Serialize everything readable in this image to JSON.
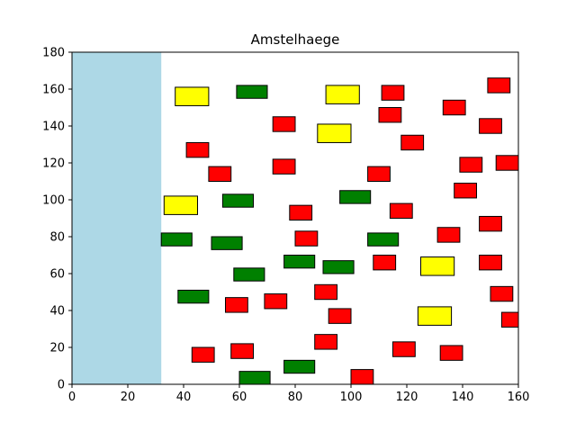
{
  "chart_data": {
    "type": "rectangles",
    "title": "Amstelhaege",
    "xlabel": "",
    "ylabel": "",
    "xlim": [
      0,
      160
    ],
    "ylim": [
      0,
      180
    ],
    "xticks": [
      "0",
      "20",
      "40",
      "60",
      "80",
      "100",
      "120",
      "140",
      "160"
    ],
    "yticks": [
      "0",
      "20",
      "40",
      "60",
      "80",
      "100",
      "120",
      "140",
      "160",
      "180"
    ],
    "grid": false,
    "colors": {
      "water": "#add8e6",
      "red": "#ff0000",
      "green": "#008000",
      "yellow": "#ffff00",
      "edge": "#000000"
    },
    "water": [
      {
        "x": 0,
        "y": 0,
        "w": 32,
        "h": 180
      }
    ],
    "houses": [
      {
        "color": "yellow",
        "x": 37,
        "y": 151,
        "w": 12,
        "h": 10
      },
      {
        "color": "yellow",
        "x": 91,
        "y": 152,
        "w": 12,
        "h": 10
      },
      {
        "color": "yellow",
        "x": 88,
        "y": 131,
        "w": 12,
        "h": 10
      },
      {
        "color": "yellow",
        "x": 33,
        "y": 92,
        "w": 12,
        "h": 10
      },
      {
        "color": "yellow",
        "x": 125,
        "y": 59,
        "w": 12,
        "h": 10
      },
      {
        "color": "yellow",
        "x": 124,
        "y": 32,
        "w": 12,
        "h": 10
      },
      {
        "color": "green",
        "x": 59,
        "y": 155,
        "w": 11,
        "h": 7
      },
      {
        "color": "green",
        "x": 54,
        "y": 96,
        "w": 11,
        "h": 7
      },
      {
        "color": "green",
        "x": 96,
        "y": 98,
        "w": 11,
        "h": 7
      },
      {
        "color": "green",
        "x": 32,
        "y": 75,
        "w": 11,
        "h": 7
      },
      {
        "color": "green",
        "x": 50,
        "y": 73,
        "w": 11,
        "h": 7
      },
      {
        "color": "green",
        "x": 106,
        "y": 75,
        "w": 11,
        "h": 7
      },
      {
        "color": "green",
        "x": 76,
        "y": 63,
        "w": 11,
        "h": 7
      },
      {
        "color": "green",
        "x": 90,
        "y": 60,
        "w": 11,
        "h": 7
      },
      {
        "color": "green",
        "x": 58,
        "y": 56,
        "w": 11,
        "h": 7
      },
      {
        "color": "green",
        "x": 38,
        "y": 44,
        "w": 11,
        "h": 7
      },
      {
        "color": "green",
        "x": 76,
        "y": 6,
        "w": 11,
        "h": 7
      },
      {
        "color": "green",
        "x": 60,
        "y": 0,
        "w": 11,
        "h": 7
      },
      {
        "color": "red",
        "x": 111,
        "y": 154,
        "w": 8,
        "h": 8
      },
      {
        "color": "red",
        "x": 149,
        "y": 158,
        "w": 8,
        "h": 8
      },
      {
        "color": "red",
        "x": 133,
        "y": 146,
        "w": 8,
        "h": 8
      },
      {
        "color": "red",
        "x": 72,
        "y": 137,
        "w": 8,
        "h": 8
      },
      {
        "color": "red",
        "x": 110,
        "y": 142,
        "w": 8,
        "h": 8
      },
      {
        "color": "red",
        "x": 146,
        "y": 136,
        "w": 8,
        "h": 8
      },
      {
        "color": "red",
        "x": 118,
        "y": 127,
        "w": 8,
        "h": 8
      },
      {
        "color": "red",
        "x": 41,
        "y": 123,
        "w": 8,
        "h": 8
      },
      {
        "color": "red",
        "x": 72,
        "y": 114,
        "w": 8,
        "h": 8
      },
      {
        "color": "red",
        "x": 49,
        "y": 110,
        "w": 8,
        "h": 8
      },
      {
        "color": "red",
        "x": 106,
        "y": 110,
        "w": 8,
        "h": 8
      },
      {
        "color": "red",
        "x": 139,
        "y": 115,
        "w": 8,
        "h": 8
      },
      {
        "color": "red",
        "x": 152,
        "y": 116,
        "w": 8,
        "h": 8
      },
      {
        "color": "red",
        "x": 137,
        "y": 101,
        "w": 8,
        "h": 8
      },
      {
        "color": "red",
        "x": 78,
        "y": 89,
        "w": 8,
        "h": 8
      },
      {
        "color": "red",
        "x": 114,
        "y": 90,
        "w": 8,
        "h": 8
      },
      {
        "color": "red",
        "x": 146,
        "y": 83,
        "w": 8,
        "h": 8
      },
      {
        "color": "red",
        "x": 80,
        "y": 75,
        "w": 8,
        "h": 8
      },
      {
        "color": "red",
        "x": 131,
        "y": 77,
        "w": 8,
        "h": 8
      },
      {
        "color": "red",
        "x": 108,
        "y": 62,
        "w": 8,
        "h": 8
      },
      {
        "color": "red",
        "x": 146,
        "y": 62,
        "w": 8,
        "h": 8
      },
      {
        "color": "red",
        "x": 87,
        "y": 46,
        "w": 8,
        "h": 8
      },
      {
        "color": "red",
        "x": 150,
        "y": 45,
        "w": 8,
        "h": 8
      },
      {
        "color": "red",
        "x": 69,
        "y": 41,
        "w": 8,
        "h": 8
      },
      {
        "color": "red",
        "x": 55,
        "y": 39,
        "w": 8,
        "h": 8
      },
      {
        "color": "red",
        "x": 92,
        "y": 33,
        "w": 8,
        "h": 8
      },
      {
        "color": "red",
        "x": 154,
        "y": 31,
        "w": 8,
        "h": 8
      },
      {
        "color": "red",
        "x": 87,
        "y": 19,
        "w": 8,
        "h": 8
      },
      {
        "color": "red",
        "x": 115,
        "y": 15,
        "w": 8,
        "h": 8
      },
      {
        "color": "red",
        "x": 57,
        "y": 14,
        "w": 8,
        "h": 8
      },
      {
        "color": "red",
        "x": 132,
        "y": 13,
        "w": 8,
        "h": 8
      },
      {
        "color": "red",
        "x": 43,
        "y": 12,
        "w": 8,
        "h": 8
      },
      {
        "color": "red",
        "x": 100,
        "y": 0,
        "w": 8,
        "h": 8
      }
    ]
  }
}
